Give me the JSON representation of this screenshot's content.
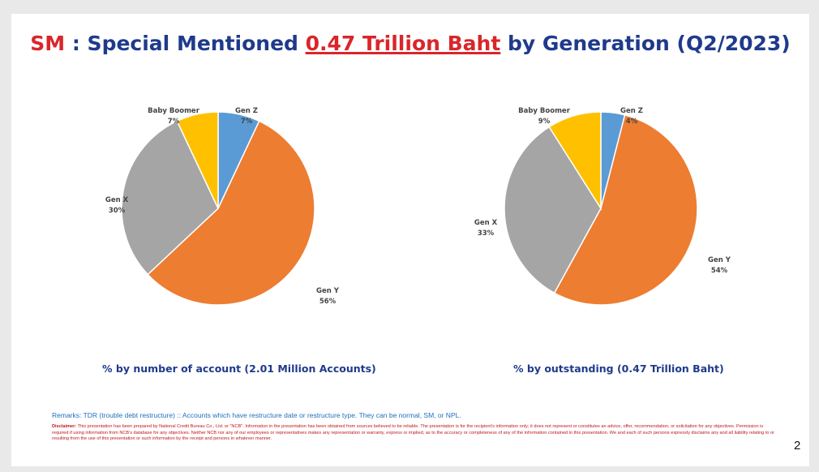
{
  "header": {
    "title_prefix": "SM",
    "title_sep": " : Special Mentioned ",
    "title_highlight": "0.47 Trillion Baht",
    "title_suffix": " by Generation (Q2/2023)"
  },
  "colors": {
    "Gen Z": "#5b9bd5",
    "Gen Y": "#ed7d31",
    "Gen X": "#a5a5a5",
    "Baby Boomer": "#ffc000",
    "title_blue": "#1f3a8c",
    "title_red": "#d9262b"
  },
  "chart_data": [
    {
      "type": "pie",
      "title": "% by number of account (2.01 Million Accounts)",
      "slices": [
        {
          "label": "Gen Z",
          "value": 7,
          "pct_text": "7%"
        },
        {
          "label": "Gen Y",
          "value": 56,
          "pct_text": "56%"
        },
        {
          "label": "Gen X",
          "value": 30,
          "pct_text": "30%"
        },
        {
          "label": "Baby Boomer",
          "value": 7,
          "pct_text": "7%"
        }
      ]
    },
    {
      "type": "pie",
      "title": "% by outstanding (0.47 Trillion Baht)",
      "slices": [
        {
          "label": "Gen Z",
          "value": 4,
          "pct_text": "4%"
        },
        {
          "label": "Gen Y",
          "value": 54,
          "pct_text": "54%"
        },
        {
          "label": "Gen X",
          "value": 33,
          "pct_text": "33%"
        },
        {
          "label": "Baby Boomer",
          "value": 9,
          "pct_text": "9%"
        }
      ]
    }
  ],
  "footer": {
    "remarks": "Remarks: TDR (trouble debt restructure) :: Accounts which have restructure date or restructure type. They can be normal, SM, or NPL.",
    "disclaimer_label": "Disclaimer:",
    "disclaimer_text": " This presentation has been prepared by National Credit Bureau Co., Ltd. or \"NCB\". Information in the presentation has been obtained from sources believed to be reliable. The presentation is for the recipient's information only; it does not represent or constitutes an advice, offer, recommendation, or solicitation for any objectives. Permission is required if using information from NCB's database for any objectives. Neither NCB nor any of our employees or representatives makes any representation or warranty, express or implied, as to the accuracy or completeness of any of the information contained in this presentation. We and each of such persons expressly disclaims any and all liability relating to or resulting from the use of this presentation or such information by the receipt and persons in whatever manner.",
    "page_number": "2"
  }
}
